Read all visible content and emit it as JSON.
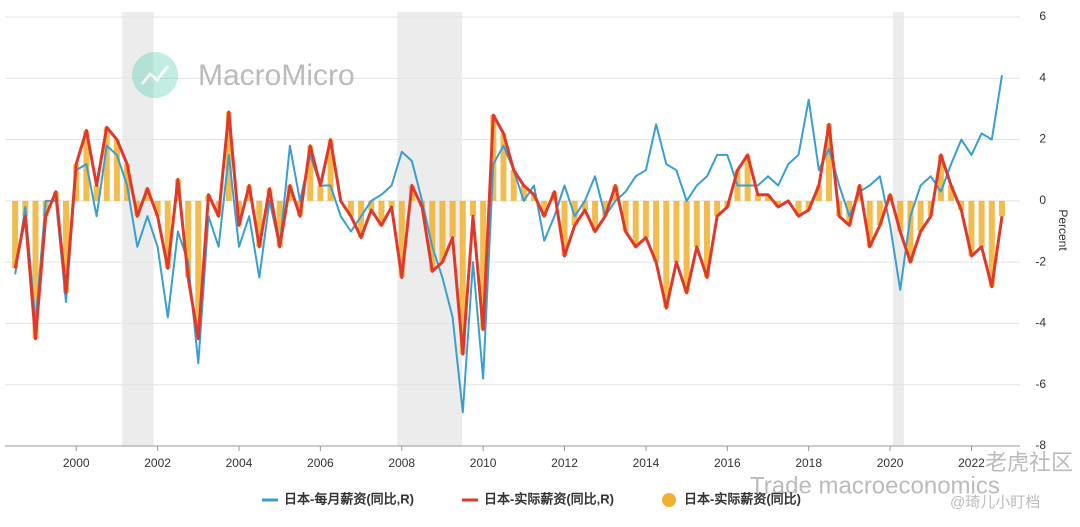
{
  "chart_data": {
    "type": "line",
    "y_label": "Percent",
    "watermarks": [
      "MacroMicro",
      "Trade macroeconomics",
      "老虎社区",
      "@琦儿小盯档"
    ],
    "xlim": [
      1998.25,
      2023.07
    ],
    "xticks": [
      2000,
      2002,
      2004,
      2006,
      2008,
      2010,
      2012,
      2014,
      2016,
      2018,
      2020,
      2022
    ],
    "ylim": [
      -8,
      6
    ],
    "yticks": [
      -8,
      -6,
      -4,
      -2,
      0,
      2,
      4,
      6
    ],
    "grid": true,
    "legend": "bottom",
    "shaded_periods": [
      [
        2001.13,
        2001.9
      ],
      [
        2007.89,
        2009.48
      ],
      [
        2020.07,
        2020.34
      ]
    ],
    "x": [
      1998.5,
      1998.75,
      1999,
      1999.25,
      1999.5,
      1999.75,
      2000,
      2000.25,
      2000.5,
      2000.75,
      2001,
      2001.25,
      2001.5,
      2001.75,
      2002,
      2002.25,
      2002.5,
      2002.75,
      2003,
      2003.25,
      2003.5,
      2003.75,
      2004,
      2004.25,
      2004.5,
      2004.75,
      2005,
      2005.25,
      2005.5,
      2005.75,
      2006,
      2006.25,
      2006.5,
      2006.75,
      2007,
      2007.25,
      2007.5,
      2007.75,
      2008,
      2008.25,
      2008.5,
      2008.75,
      2009,
      2009.25,
      2009.5,
      2009.75,
      2010,
      2010.25,
      2010.5,
      2010.75,
      2011,
      2011.25,
      2011.5,
      2011.75,
      2012,
      2012.25,
      2012.5,
      2012.75,
      2013,
      2013.25,
      2013.5,
      2013.75,
      2014,
      2014.25,
      2014.5,
      2014.75,
      2015,
      2015.25,
      2015.5,
      2015.75,
      2016,
      2016.25,
      2016.5,
      2016.75,
      2017,
      2017.25,
      2017.5,
      2017.75,
      2018,
      2018.25,
      2018.5,
      2018.75,
      2019,
      2019.25,
      2019.5,
      2019.75,
      2020,
      2020.25,
      2020.5,
      2020.75,
      2021,
      2021.25,
      2021.5,
      2021.75,
      2022,
      2022.25,
      2022.5,
      2022.75
    ],
    "series": [
      {
        "name": "日本-每月薪资(同比,R)",
        "color": "#3a9fd0",
        "kind": "line",
        "values": [
          -2.4,
          -0.2,
          -4.0,
          0,
          0,
          -3.3,
          1.0,
          1.2,
          -0.5,
          1.8,
          1.5,
          0.5,
          -1.5,
          -0.5,
          -1.5,
          -3.8,
          -1.0,
          -2.0,
          -5.3,
          -0.5,
          -1.5,
          1.5,
          -1.5,
          -0.5,
          -2.5,
          0,
          -1.5,
          1.8,
          0,
          1.5,
          0.5,
          0.5,
          -0.5,
          -1.0,
          -0.5,
          0,
          0.2,
          0.5,
          1.6,
          1.3,
          0,
          -1.5,
          -2.5,
          -3.8,
          -6.9,
          -2.0,
          -5.8,
          1.2,
          1.8,
          1.0,
          0,
          0.5,
          -1.3,
          -0.5,
          0.5,
          -0.5,
          0,
          0.8,
          -0.5,
          0,
          0.3,
          0.8,
          1.0,
          2.5,
          1.2,
          1.0,
          0,
          0.5,
          0.8,
          1.5,
          1.5,
          0.5,
          0.5,
          0.5,
          0.8,
          0.5,
          1.2,
          1.5,
          3.3,
          1.0,
          1.7,
          0.5,
          -0.5,
          0.3,
          0.5,
          0.8,
          -0.8,
          -2.9,
          -0.5,
          0.5,
          0.8,
          0.3,
          1.2,
          2.0,
          1.5,
          2.2,
          2.0,
          4.1
        ]
      },
      {
        "name": "日本-实际薪资(同比,R)",
        "color": "#e0392b",
        "kind": "line",
        "values": [
          -2.2,
          -0.5,
          -4.5,
          -0.5,
          0.3,
          -3,
          1.2,
          2.3,
          0.5,
          2.4,
          2.0,
          1.2,
          -0.5,
          0.4,
          -0.5,
          -2.2,
          0.7,
          -2.5,
          -4.5,
          0.2,
          -0.5,
          2.9,
          -0.8,
          0.5,
          -1.5,
          0.4,
          -1.5,
          0.5,
          -0.5,
          1.8,
          0.5,
          2.0,
          0,
          -0.5,
          -1.2,
          -0.3,
          -0.8,
          -0.2,
          -2.5,
          0.5,
          -0.2,
          -2.3,
          -2.0,
          -1.2,
          -5.0,
          -0.5,
          -4.2,
          2.8,
          2.2,
          1.0,
          0.5,
          0.2,
          -0.5,
          0.3,
          -1.8,
          -0.8,
          -0.3,
          -1.0,
          -0.5,
          0.5,
          -1.0,
          -1.5,
          -1.2,
          -2.0,
          -3.5,
          -2.0,
          -3.0,
          -1.5,
          -2.5,
          -0.5,
          -0.2,
          1.0,
          1.5,
          0.2,
          0.2,
          -0.2,
          0,
          -0.5,
          -0.3,
          0.5,
          2.5,
          -0.5,
          -0.8,
          0.5,
          -1.5,
          -0.8,
          0.2,
          -1.0,
          -2.0,
          -1.0,
          -0.5,
          1.5,
          0.5,
          -0.3,
          -1.8,
          -1.5,
          -2.8,
          -0.5
        ]
      },
      {
        "name": "日本-实际薪资(同比)",
        "color": "#f0b030",
        "kind": "bar",
        "values": [
          -2.2,
          -0.5,
          -4.5,
          -0.5,
          0.3,
          -3,
          1.2,
          2.3,
          0.5,
          2.4,
          2.0,
          1.2,
          -0.5,
          0.4,
          -0.5,
          -2.2,
          0.7,
          -2.5,
          -4.5,
          0.2,
          -0.5,
          2.9,
          -0.8,
          0.5,
          -1.5,
          0.4,
          -1.5,
          0.5,
          -0.5,
          1.8,
          0.5,
          2.0,
          0,
          -0.5,
          -1.2,
          -0.3,
          -0.8,
          -0.2,
          -2.5,
          0.5,
          -0.2,
          -2.3,
          -2.0,
          -1.2,
          -5.0,
          -0.5,
          -4.2,
          2.8,
          2.2,
          1.0,
          0.5,
          0.2,
          -0.5,
          0.3,
          -1.8,
          -0.8,
          -0.3,
          -1.0,
          -0.5,
          0.5,
          -1.0,
          -1.5,
          -1.2,
          -2.0,
          -3.5,
          -2.0,
          -3.0,
          -1.5,
          -2.5,
          -0.5,
          -0.2,
          1.0,
          1.5,
          0.2,
          0.2,
          -0.2,
          0,
          -0.5,
          -0.3,
          0.5,
          2.5,
          -0.5,
          -0.8,
          0.5,
          -1.5,
          -0.8,
          0.2,
          -1.0,
          -2.0,
          -1.0,
          -0.5,
          1.5,
          0.5,
          -0.3,
          -1.8,
          -1.5,
          -2.8,
          -0.5
        ]
      }
    ]
  }
}
